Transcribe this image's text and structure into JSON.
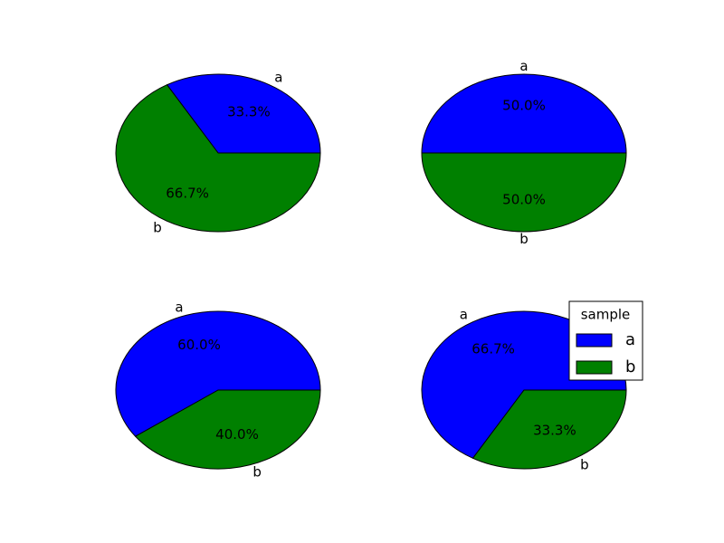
{
  "chart_data": [
    {
      "type": "pie",
      "categories": [
        "a",
        "b"
      ],
      "values": [
        1,
        2
      ],
      "percent_labels": [
        "33.3%",
        "66.7%"
      ],
      "start_angle_deg": 0,
      "direction": "counterclockwise"
    },
    {
      "type": "pie",
      "categories": [
        "a",
        "b"
      ],
      "values": [
        1,
        1
      ],
      "percent_labels": [
        "50.0%",
        "50.0%"
      ],
      "start_angle_deg": 0,
      "direction": "counterclockwise"
    },
    {
      "type": "pie",
      "categories": [
        "a",
        "b"
      ],
      "values": [
        3,
        2
      ],
      "percent_labels": [
        "60.0%",
        "40.0%"
      ],
      "start_angle_deg": 0,
      "direction": "counterclockwise"
    },
    {
      "type": "pie",
      "categories": [
        "a",
        "b"
      ],
      "values": [
        2,
        1
      ],
      "percent_labels": [
        "66.7%",
        "33.3%"
      ],
      "start_angle_deg": 0,
      "direction": "counterclockwise",
      "legend": {
        "title": "sample",
        "entries": [
          "a",
          "b"
        ],
        "placement": "top-right"
      }
    }
  ],
  "colors": {
    "a": "#0000ff",
    "b": "#008000",
    "edge": "#000000",
    "background": "#ffffff"
  }
}
